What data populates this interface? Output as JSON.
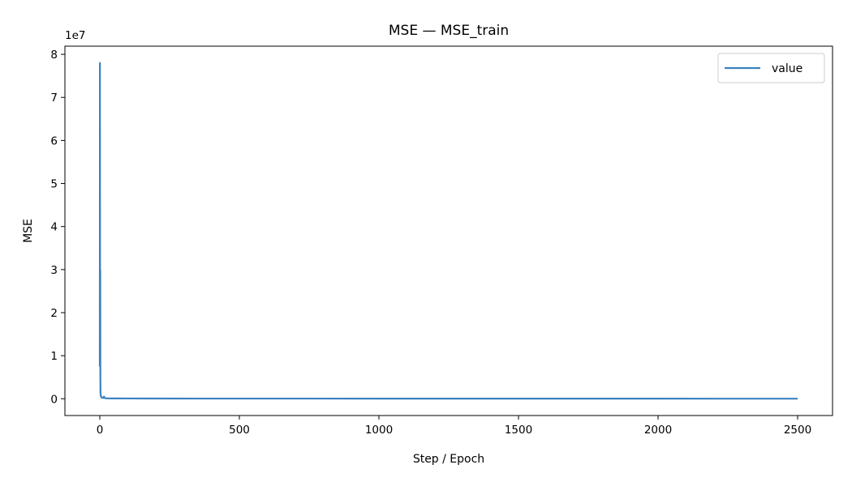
{
  "chart_data": {
    "type": "line",
    "title": "MSE — MSE_train",
    "xlabel": "Step / Epoch",
    "ylabel": "MSE",
    "y_offset_label": "1e7",
    "xlim": [
      -125,
      2625
    ],
    "ylim": [
      -3900000,
      81900000
    ],
    "x_ticks": [
      0,
      500,
      1000,
      1500,
      2000,
      2500
    ],
    "x_tick_labels": [
      "0",
      "500",
      "1000",
      "1500",
      "2000",
      "2500"
    ],
    "y_ticks": [
      0,
      10000000,
      20000000,
      30000000,
      40000000,
      50000000,
      60000000,
      70000000,
      80000000
    ],
    "y_tick_labels": [
      "0",
      "1",
      "2",
      "3",
      "4",
      "5",
      "6",
      "7",
      "8"
    ],
    "grid": false,
    "legend_position": "top-right",
    "series": [
      {
        "name": "value",
        "color": "#3b82bf",
        "x": [
          0,
          0.5,
          1,
          1.5,
          2,
          2.5,
          3,
          4,
          5,
          6,
          8,
          10,
          12,
          15,
          18,
          20,
          25,
          30,
          40,
          60,
          100,
          200,
          500,
          1000,
          1500,
          2000,
          2500
        ],
        "y": [
          7500000,
          78000000,
          7600000,
          30000000,
          5000000,
          1500000,
          1000000,
          600000,
          400000,
          300000,
          250000,
          200000,
          180000,
          500000,
          150000,
          120000,
          100000,
          90000,
          80000,
          70000,
          60000,
          50000,
          40000,
          30000,
          25000,
          22000,
          20000
        ]
      }
    ]
  }
}
